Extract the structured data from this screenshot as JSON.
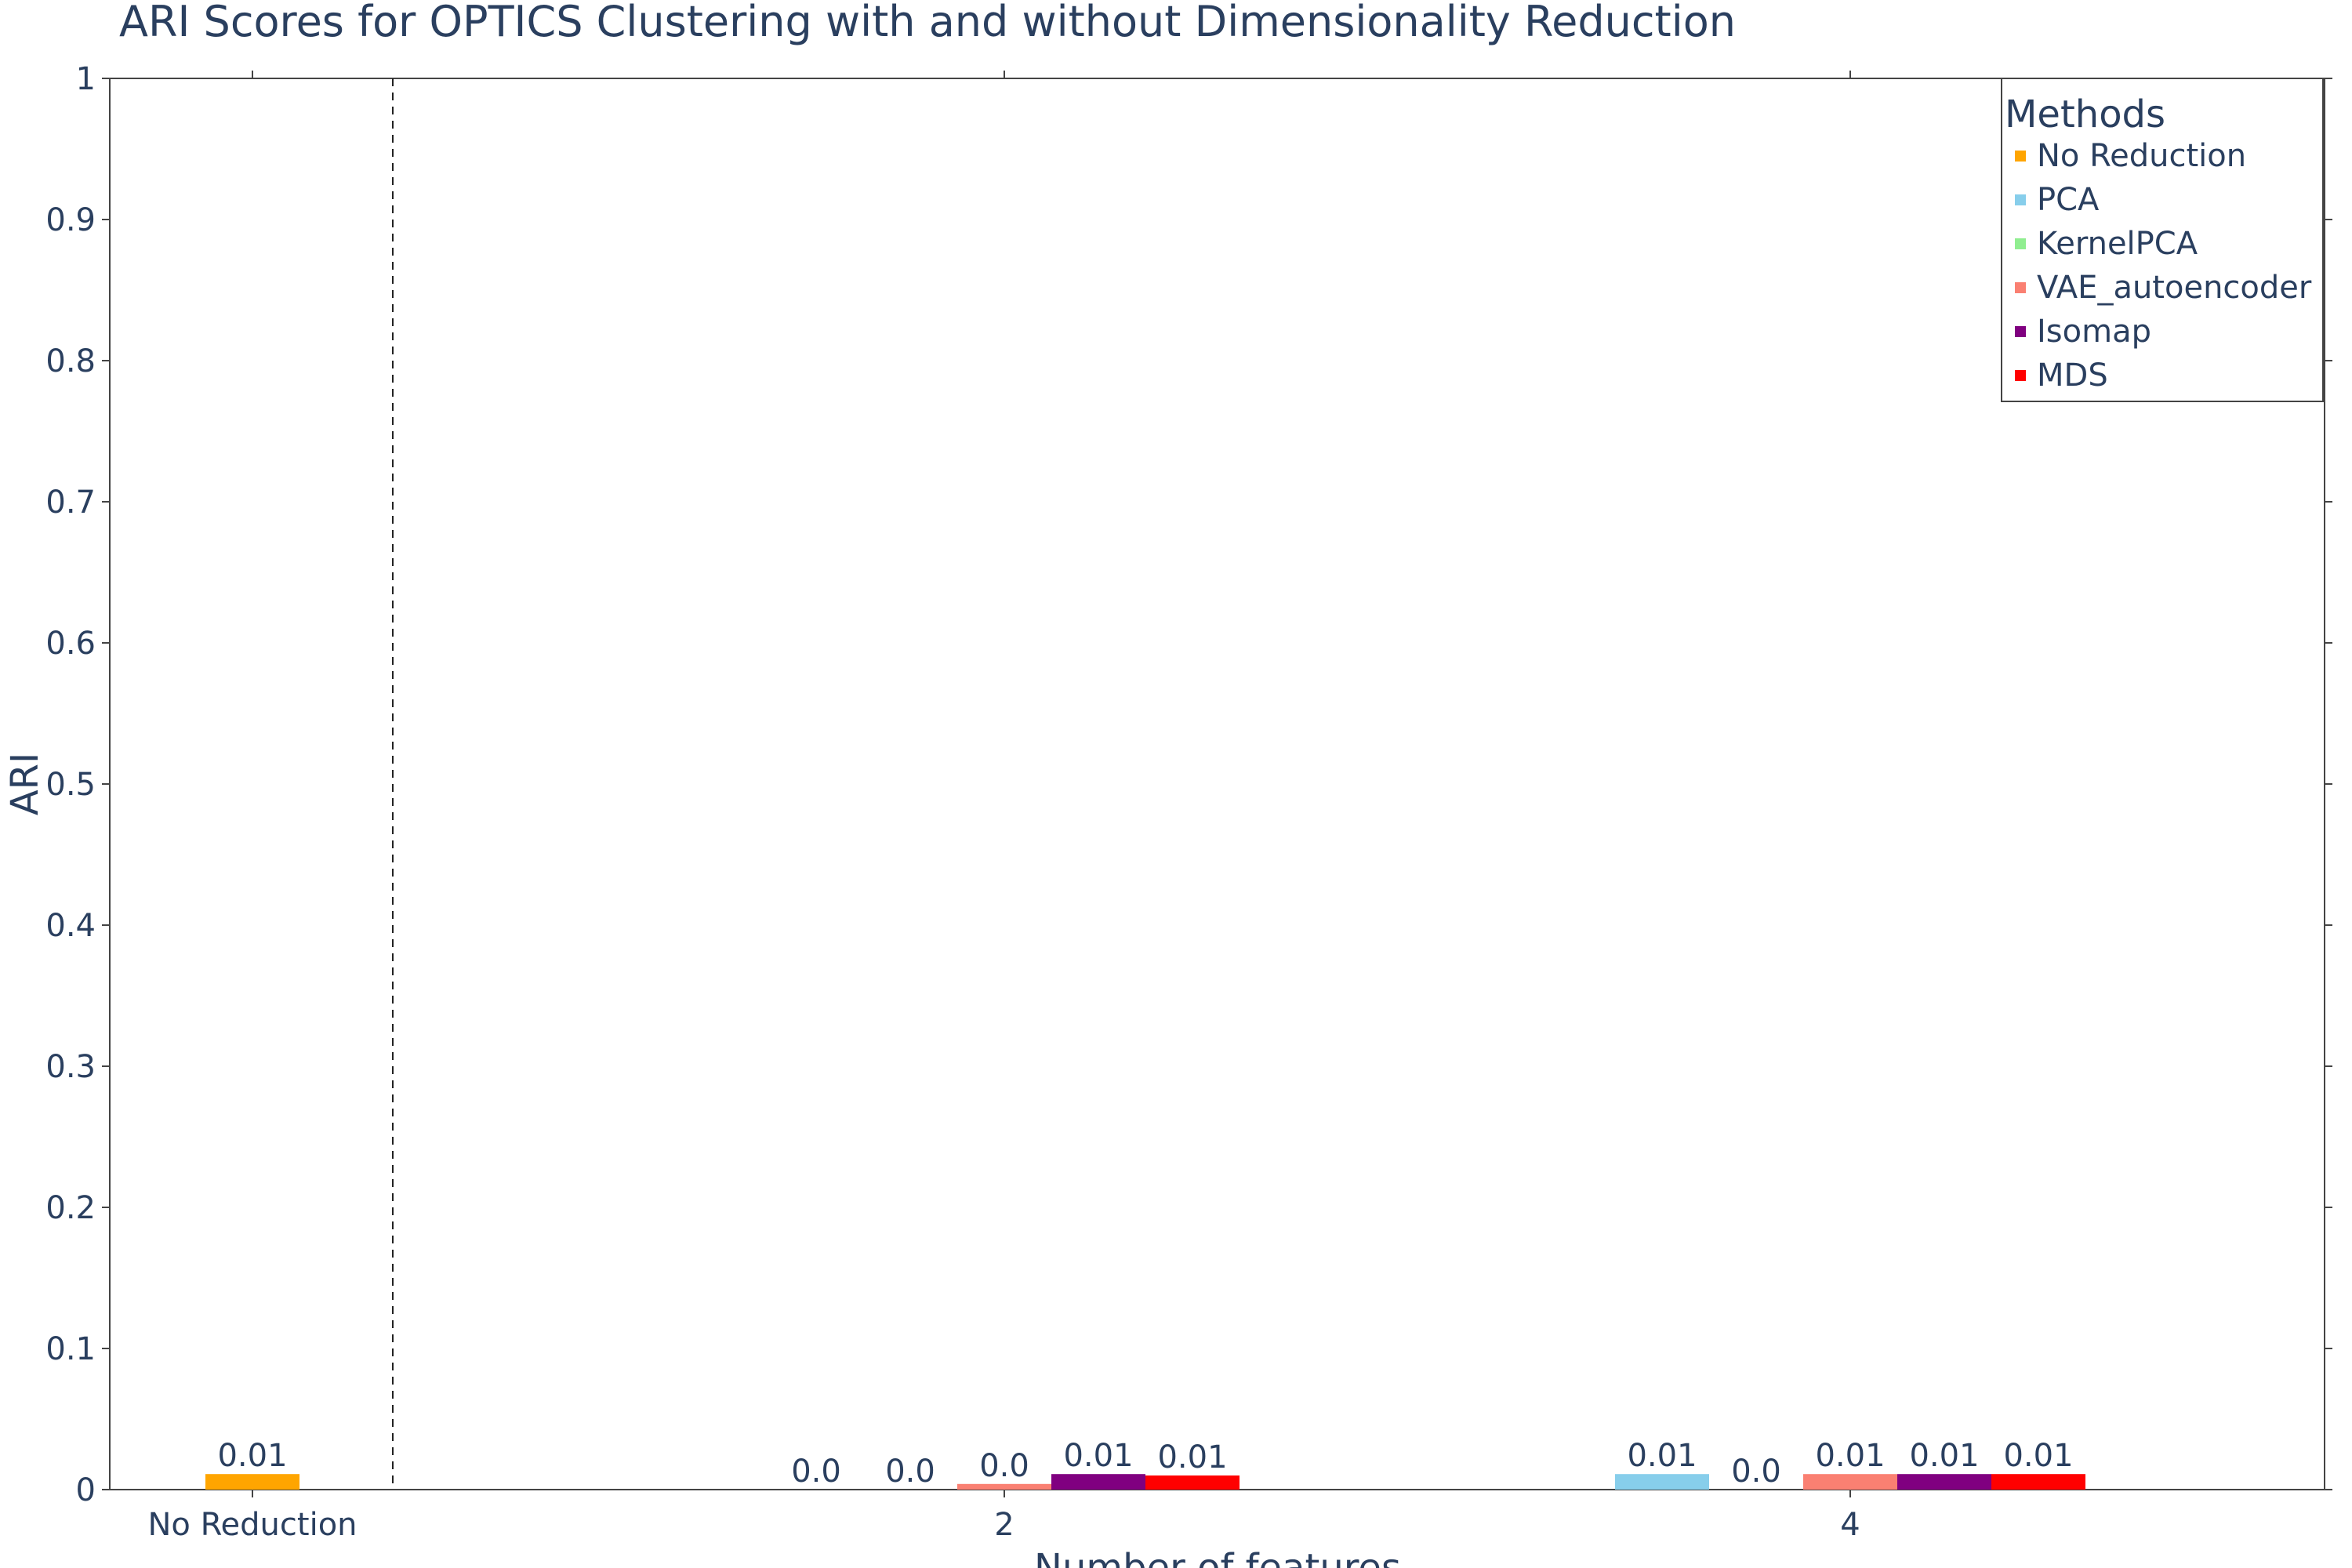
{
  "chart_data": {
    "type": "bar",
    "title": "ARI Scores for OPTICS Clustering with and without Dimensionality Reduction",
    "xlabel": "Number of features",
    "ylabel": "ARI",
    "ylim": [
      0,
      1
    ],
    "yticks": [
      "0",
      "0.1",
      "0.2",
      "0.3",
      "0.4",
      "0.5",
      "0.6",
      "0.7",
      "0.8",
      "0.9",
      "1"
    ],
    "categories": [
      "No Reduction",
      "2",
      "4"
    ],
    "legend": {
      "title": "Methods",
      "position": "top-right"
    },
    "grid": false,
    "separator_after_category": "No Reduction",
    "series": [
      {
        "name": "No Reduction",
        "color": "#FFA500",
        "values": [
          0.011,
          null,
          null
        ],
        "labels": [
          "0.01",
          "",
          ""
        ]
      },
      {
        "name": "PCA",
        "color": "#87CEEB",
        "values": [
          null,
          0.0,
          0.011
        ],
        "labels": [
          "",
          "0.0",
          "0.01"
        ]
      },
      {
        "name": "KernelPCA",
        "color": "#90EE90",
        "values": [
          null,
          0.0,
          0.0
        ],
        "labels": [
          "",
          "0.0",
          "0.0"
        ]
      },
      {
        "name": "VAE_autoencoder",
        "color": "#FA8072",
        "values": [
          null,
          0.004,
          0.011
        ],
        "labels": [
          "",
          "0.0",
          "0.01"
        ]
      },
      {
        "name": "Isomap",
        "color": "#800080",
        "values": [
          null,
          0.011,
          0.011
        ],
        "labels": [
          "",
          "0.01",
          "0.01"
        ]
      },
      {
        "name": "MDS",
        "color": "#FF0000",
        "values": [
          null,
          0.01,
          0.011
        ],
        "labels": [
          "",
          "0.01",
          "0.01"
        ]
      }
    ]
  }
}
